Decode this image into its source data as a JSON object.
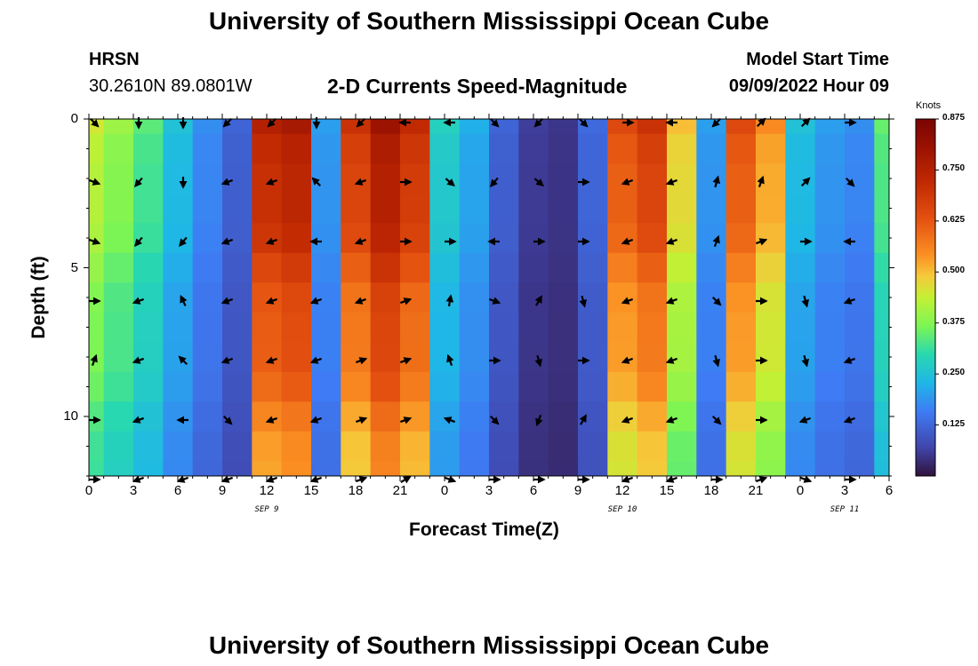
{
  "header": {
    "title": "University of Southern Mississippi Ocean Cube",
    "station": "HRSN",
    "coords": "30.2610N  89.0801W",
    "subtitle": "2-D Currents Speed-Magnitude",
    "model_label": "Model Start Time",
    "model_time": "09/09/2022 Hour 09"
  },
  "footer": {
    "title": "University of Southern Mississippi Ocean Cube"
  },
  "chart_data": {
    "type": "heatmap",
    "title": "2-D Currents Speed-Magnitude",
    "xlabel": "Forecast Time(Z)",
    "ylabel": "Depth (ft)",
    "x_range_hours": [
      0,
      54
    ],
    "y_range_ft": [
      0,
      12
    ],
    "y_inverted": true,
    "x_tick_labels": [
      "0",
      "3",
      "6",
      "9",
      "12",
      "15",
      "18",
      "21",
      "0",
      "3",
      "6",
      "9",
      "12",
      "15",
      "18",
      "21",
      "0",
      "3",
      "6"
    ],
    "y_tick_labels": [
      "0",
      "5",
      "10"
    ],
    "day_labels": [
      "SEP 9",
      "SEP 10",
      "SEP 11"
    ],
    "colorbar": {
      "unit": "Knots",
      "tick_labels": [
        "0.875",
        "0.750",
        "0.625",
        "0.500",
        "0.375",
        "0.250",
        "0.125"
      ],
      "range": [
        0.0,
        0.875
      ]
    },
    "time_hours": [
      0,
      2,
      4,
      6,
      8,
      10,
      12,
      14,
      16,
      18,
      20,
      22,
      24,
      26,
      28,
      30,
      32,
      34,
      36,
      38,
      40,
      42,
      44,
      46,
      48,
      50,
      52,
      54
    ],
    "depth_ft": [
      0,
      1,
      2,
      3,
      4,
      5,
      6,
      7,
      8,
      9,
      10,
      11,
      12
    ],
    "speed_profile_knots": [
      0.45,
      0.4,
      0.34,
      0.25,
      0.18,
      0.12,
      0.75,
      0.78,
      0.2,
      0.7,
      0.8,
      0.72,
      0.28,
      0.22,
      0.12,
      0.06,
      0.05,
      0.13,
      0.65,
      0.7,
      0.5,
      0.2,
      0.65,
      0.55,
      0.25,
      0.2,
      0.18,
      0.35
    ],
    "vector_rows_ft": [
      0,
      2,
      4,
      6,
      8,
      10,
      12
    ],
    "vector_cols_hours": [
      0,
      3,
      6,
      9,
      12,
      15,
      18,
      21,
      24,
      27,
      30,
      33,
      36,
      39,
      42,
      45,
      48,
      51
    ],
    "vector_directions_deg": [
      [
        135,
        180,
        180,
        225,
        225,
        180,
        225,
        270,
        270,
        135,
        225,
        135,
        90,
        270,
        225,
        45,
        45,
        90
      ],
      [
        110,
        220,
        180,
        250,
        250,
        315,
        250,
        90,
        130,
        220,
        130,
        90,
        250,
        250,
        15,
        20,
        45,
        135
      ],
      [
        110,
        220,
        220,
        250,
        250,
        270,
        250,
        90,
        90,
        270,
        90,
        90,
        250,
        250,
        20,
        70,
        90,
        270
      ],
      [
        90,
        250,
        335,
        250,
        250,
        250,
        250,
        70,
        10,
        110,
        30,
        165,
        250,
        250,
        135,
        90,
        165,
        250
      ],
      [
        20,
        250,
        315,
        250,
        250,
        250,
        70,
        70,
        340,
        90,
        165,
        90,
        250,
        250,
        165,
        90,
        165,
        250
      ],
      [
        90,
        250,
        270,
        135,
        250,
        250,
        70,
        70,
        290,
        135,
        200,
        30,
        250,
        250,
        135,
        90,
        250,
        250
      ],
      [
        90,
        250,
        250,
        250,
        250,
        250,
        70,
        60,
        110,
        90,
        90,
        90,
        250,
        250,
        90,
        70,
        110,
        90
      ]
    ]
  }
}
